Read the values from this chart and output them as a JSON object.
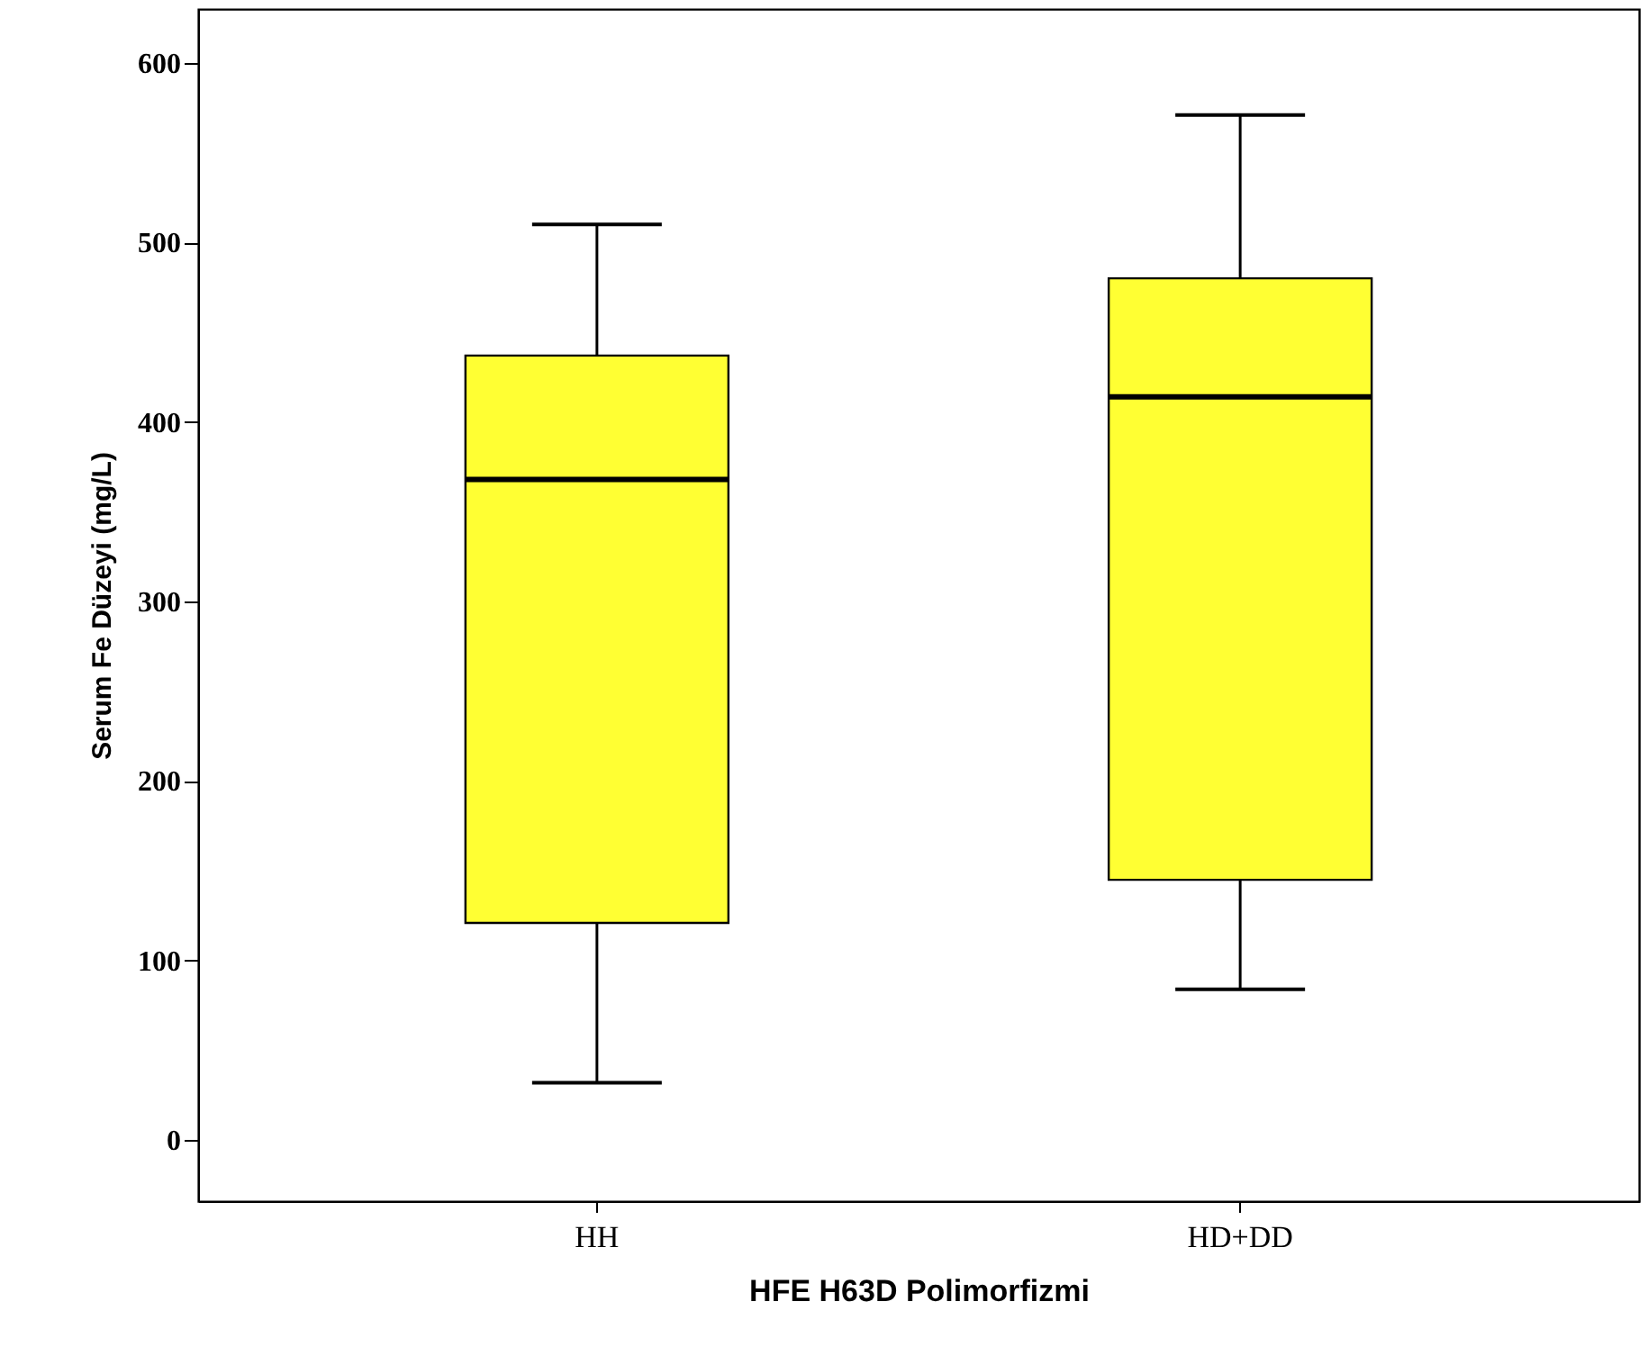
{
  "chart_data": {
    "type": "box",
    "xlabel": "HFE H63D Polimorfizmi",
    "ylabel": "Serum  Fe Düzeyi (mg/L)",
    "categories": [
      "HH",
      "HD+DD"
    ],
    "ylim": [
      -34,
      630
    ],
    "yticks": [
      0,
      100,
      200,
      300,
      400,
      500,
      600
    ],
    "series": [
      {
        "color": "#ffff33",
        "boxes": [
          {
            "low": 32,
            "q1": 121,
            "median": 368,
            "q3": 437,
            "high": 510
          },
          {
            "low": 84,
            "q1": 145,
            "median": 414,
            "q3": 480,
            "high": 571
          }
        ]
      }
    ]
  }
}
